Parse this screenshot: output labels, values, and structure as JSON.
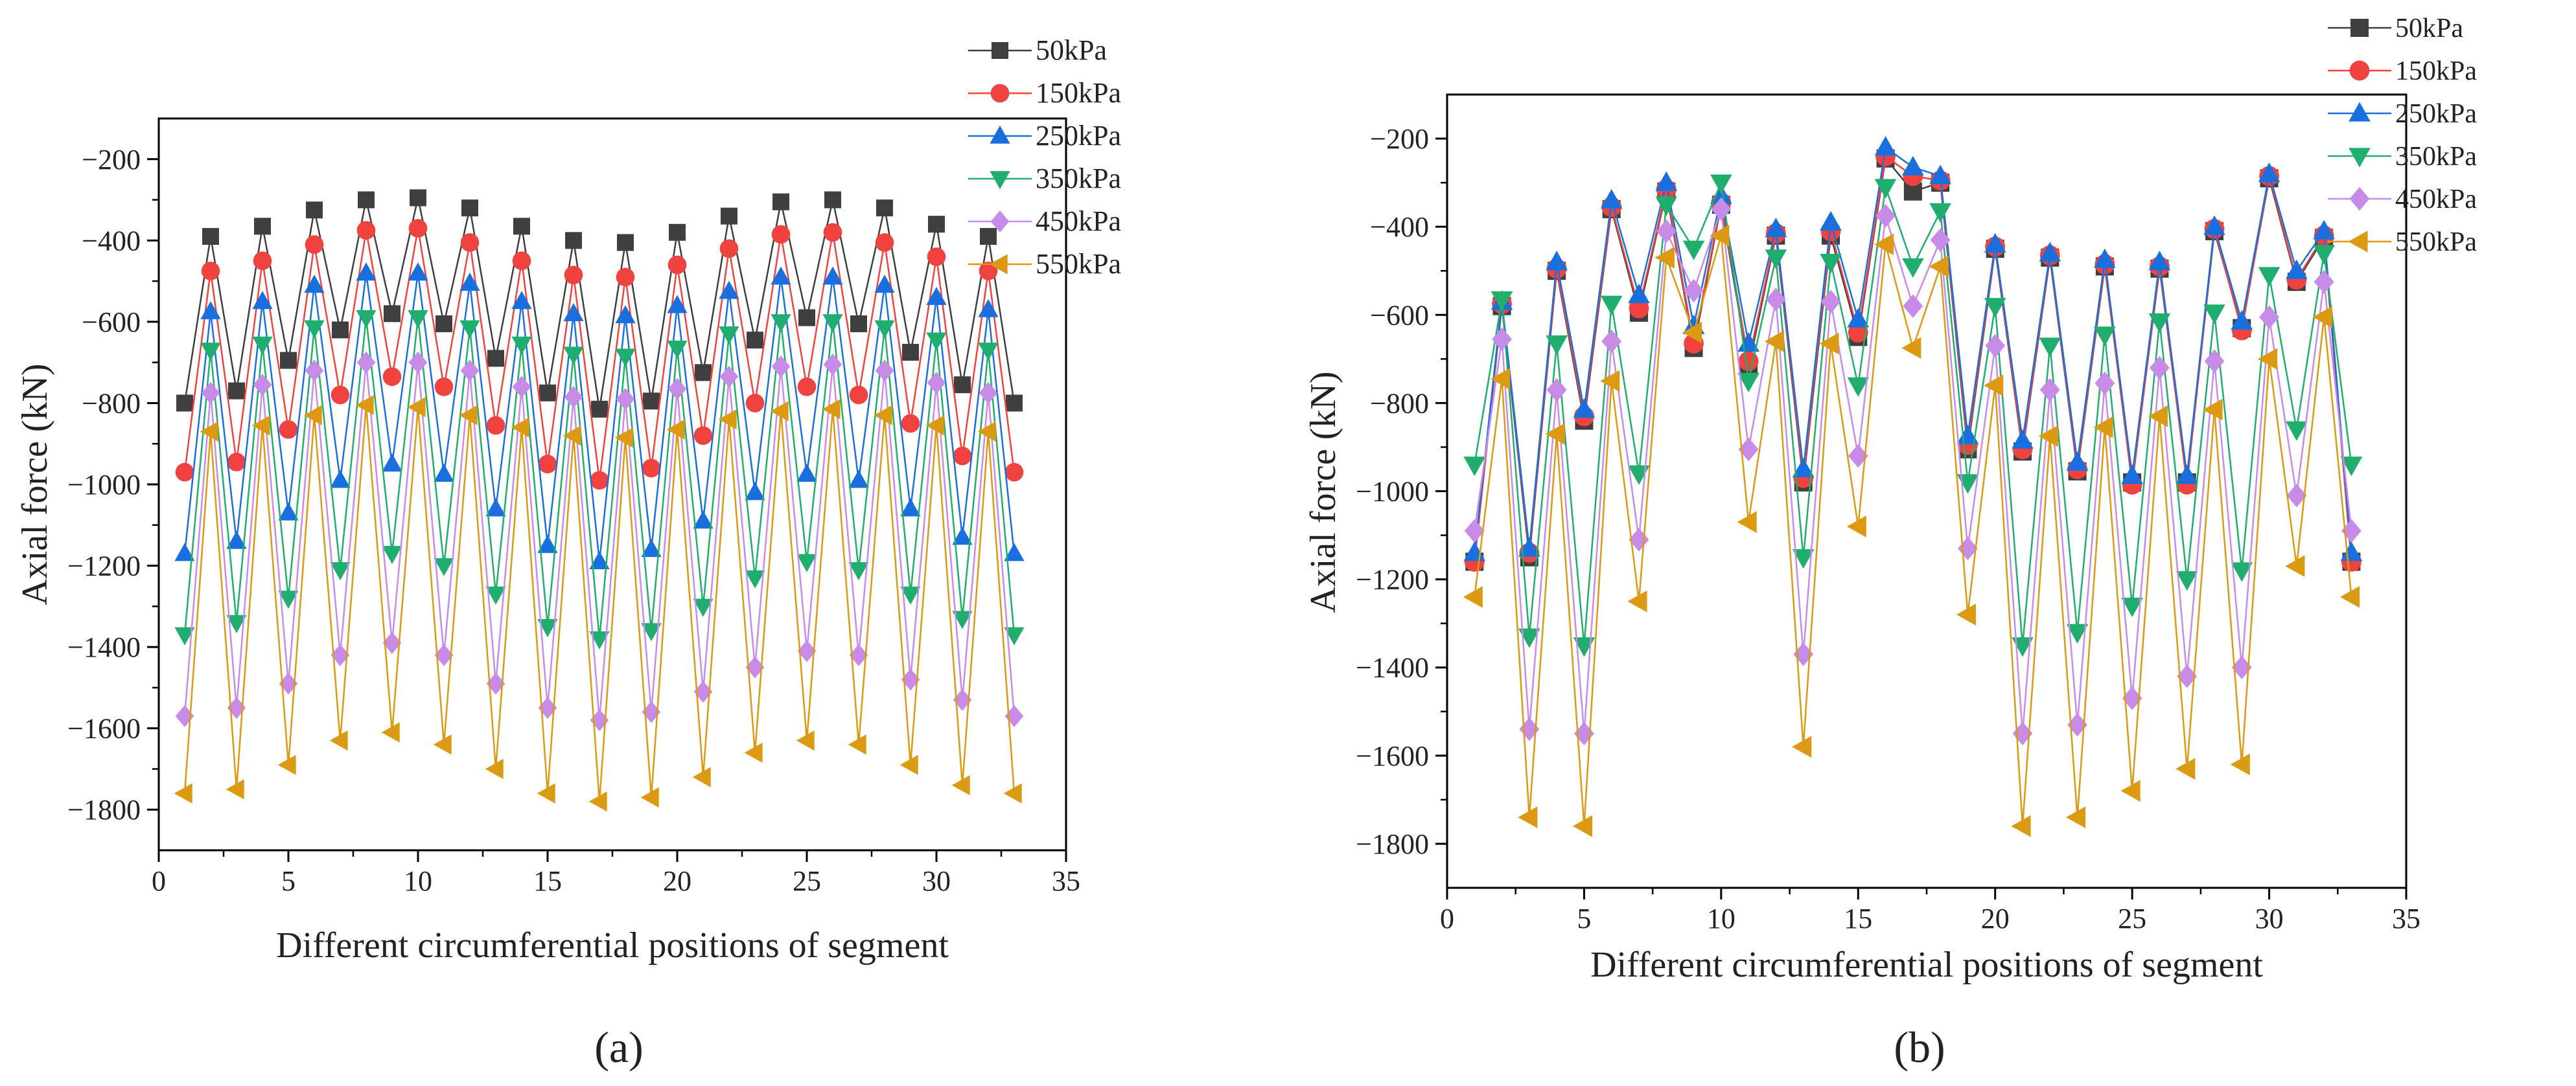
{
  "figure": {
    "panel_labels": [
      "(a)",
      "(b)"
    ]
  },
  "colors": {
    "50kPa": "#3f3f3f",
    "150kPa": "#f0433f",
    "250kPa": "#1a6fdf",
    "350kPa": "#1fae6e",
    "450kPa": "#c98be8",
    "550kPa": "#dc9a12"
  },
  "chart_data": [
    {
      "type": "line",
      "panel": "(a)",
      "xlabel": "Different circumferential positions of segment",
      "ylabel": "Axial force (kN)",
      "xlim": [
        0,
        35
      ],
      "ylim": [
        -1900,
        -100
      ],
      "xticks": [
        0,
        5,
        10,
        15,
        20,
        25,
        30,
        35
      ],
      "yticks": [
        -200,
        -400,
        -600,
        -800,
        -1000,
        -1200,
        -1400,
        -1600,
        -1800
      ],
      "legend_position": "top-right",
      "x": [
        1,
        2,
        3,
        4,
        5,
        6,
        7,
        8,
        9,
        10,
        11,
        12,
        13,
        14,
        15,
        16,
        17,
        18,
        19,
        20,
        21,
        22,
        23,
        24,
        25,
        26,
        27,
        28,
        29,
        30,
        31,
        32,
        33
      ],
      "series": [
        {
          "name": "50kPa",
          "marker": "square",
          "values": [
            -800,
            -390,
            -770,
            -365,
            -695,
            -325,
            -620,
            -300,
            -580,
            -295,
            -605,
            -320,
            -690,
            -365,
            -775,
            -400,
            -815,
            -405,
            -795,
            -380,
            -725,
            -340,
            -645,
            -305,
            -590,
            -300,
            -605,
            -320,
            -675,
            -360,
            -755,
            -390,
            -800
          ]
        },
        {
          "name": "150kPa",
          "marker": "circle",
          "values": [
            -970,
            -475,
            -945,
            -450,
            -865,
            -410,
            -780,
            -375,
            -735,
            -370,
            -760,
            -405,
            -855,
            -450,
            -950,
            -485,
            -990,
            -490,
            -960,
            -460,
            -880,
            -420,
            -800,
            -385,
            -760,
            -380,
            -780,
            -405,
            -850,
            -440,
            -930,
            -475,
            -970
          ]
        },
        {
          "name": "250kPa",
          "marker": "triangle-up",
          "values": [
            -1170,
            -575,
            -1140,
            -550,
            -1070,
            -510,
            -990,
            -480,
            -950,
            -480,
            -975,
            -505,
            -1060,
            -550,
            -1150,
            -580,
            -1190,
            -585,
            -1160,
            -560,
            -1090,
            -525,
            -1020,
            -490,
            -975,
            -490,
            -990,
            -510,
            -1060,
            -540,
            -1130,
            -570,
            -1170
          ]
        },
        {
          "name": "350kPa",
          "marker": "triangle-down",
          "values": [
            -1370,
            -670,
            -1340,
            -655,
            -1280,
            -615,
            -1210,
            -590,
            -1170,
            -590,
            -1200,
            -615,
            -1270,
            -655,
            -1350,
            -680,
            -1380,
            -685,
            -1360,
            -665,
            -1300,
            -630,
            -1230,
            -600,
            -1190,
            -600,
            -1210,
            -615,
            -1270,
            -645,
            -1330,
            -670,
            -1370
          ]
        },
        {
          "name": "450kPa",
          "marker": "diamond",
          "values": [
            -1570,
            -775,
            -1550,
            -755,
            -1490,
            -720,
            -1420,
            -700,
            -1390,
            -700,
            -1420,
            -720,
            -1490,
            -760,
            -1550,
            -785,
            -1580,
            -790,
            -1560,
            -765,
            -1510,
            -735,
            -1450,
            -710,
            -1410,
            -705,
            -1420,
            -720,
            -1480,
            -750,
            -1530,
            -775,
            -1570
          ]
        },
        {
          "name": "550kPa",
          "marker": "triangle-left",
          "values": [
            -1760,
            -870,
            -1750,
            -855,
            -1690,
            -830,
            -1630,
            -805,
            -1610,
            -810,
            -1640,
            -830,
            -1700,
            -860,
            -1760,
            -880,
            -1780,
            -885,
            -1770,
            -865,
            -1720,
            -840,
            -1660,
            -820,
            -1630,
            -815,
            -1640,
            -830,
            -1690,
            -855,
            -1740,
            -870,
            -1760
          ]
        }
      ]
    },
    {
      "type": "line",
      "panel": "(b)",
      "xlabel": "Different circumferential positions of segment",
      "ylabel": "Axial force (kN)",
      "xlim": [
        0,
        35
      ],
      "ylim": [
        -1900,
        -100
      ],
      "xticks": [
        0,
        5,
        10,
        15,
        20,
        25,
        30,
        35
      ],
      "yticks": [
        -200,
        -400,
        -600,
        -800,
        -1000,
        -1200,
        -1400,
        -1600,
        -1800
      ],
      "legend_position": "top-right",
      "x": [
        1,
        2,
        3,
        4,
        5,
        6,
        7,
        8,
        9,
        10,
        11,
        12,
        13,
        14,
        15,
        16,
        17,
        18,
        19,
        20,
        21,
        22,
        23,
        24,
        25,
        26,
        27,
        28,
        29,
        30,
        31,
        32,
        33
      ],
      "series": [
        {
          "name": "50kPa",
          "marker": "square",
          "values": [
            -1160,
            -580,
            -1150,
            -500,
            -840,
            -360,
            -595,
            -320,
            -675,
            -350,
            -720,
            -420,
            -980,
            -420,
            -650,
            -245,
            -320,
            -300,
            -905,
            -450,
            -910,
            -470,
            -955,
            -490,
            -980,
            -495,
            -980,
            -410,
            -630,
            -290,
            -525,
            -425,
            -1160
          ]
        },
        {
          "name": "150kPa",
          "marker": "circle",
          "values": [
            -1160,
            -575,
            -1140,
            -495,
            -830,
            -355,
            -585,
            -315,
            -665,
            -345,
            -705,
            -415,
            -970,
            -410,
            -640,
            -240,
            -285,
            -295,
            -895,
            -445,
            -905,
            -465,
            -950,
            -485,
            -985,
            -490,
            -985,
            -405,
            -635,
            -285,
            -520,
            -420,
            -1160
          ]
        },
        {
          "name": "250kPa",
          "marker": "triangle-up",
          "values": [
            -1140,
            -570,
            -1130,
            -480,
            -815,
            -340,
            -555,
            -300,
            -625,
            -330,
            -665,
            -405,
            -950,
            -390,
            -610,
            -220,
            -265,
            -285,
            -875,
            -440,
            -885,
            -460,
            -935,
            -475,
            -965,
            -480,
            -965,
            -400,
            -615,
            -280,
            -500,
            -410,
            -1140
          ]
        },
        {
          "name": "350kPa",
          "marker": "triangle-down",
          "values": [
            -940,
            -565,
            -1330,
            -665,
            -1350,
            -575,
            -960,
            -350,
            -450,
            -300,
            -750,
            -470,
            -1150,
            -480,
            -760,
            -310,
            -490,
            -365,
            -980,
            -580,
            -1350,
            -670,
            -1320,
            -645,
            -1260,
            -615,
            -1200,
            -595,
            -1180,
            -510,
            -860,
            -460,
            -940
          ]
        },
        {
          "name": "450kPa",
          "marker": "diamond",
          "values": [
            -1090,
            -655,
            -1540,
            -770,
            -1550,
            -660,
            -1110,
            -410,
            -545,
            -360,
            -905,
            -565,
            -1370,
            -570,
            -920,
            -375,
            -580,
            -430,
            -1130,
            -670,
            -1550,
            -770,
            -1530,
            -755,
            -1470,
            -720,
            -1420,
            -705,
            -1400,
            -605,
            -1010,
            -525,
            -1090
          ]
        },
        {
          "name": "550kPa",
          "marker": "triangle-left",
          "values": [
            -1240,
            -745,
            -1740,
            -870,
            -1760,
            -750,
            -1250,
            -470,
            -640,
            -420,
            -1070,
            -660,
            -1580,
            -665,
            -1080,
            -440,
            -675,
            -490,
            -1280,
            -760,
            -1760,
            -875,
            -1740,
            -855,
            -1680,
            -830,
            -1630,
            -815,
            -1620,
            -700,
            -1170,
            -605,
            -1240
          ]
        }
      ]
    }
  ]
}
